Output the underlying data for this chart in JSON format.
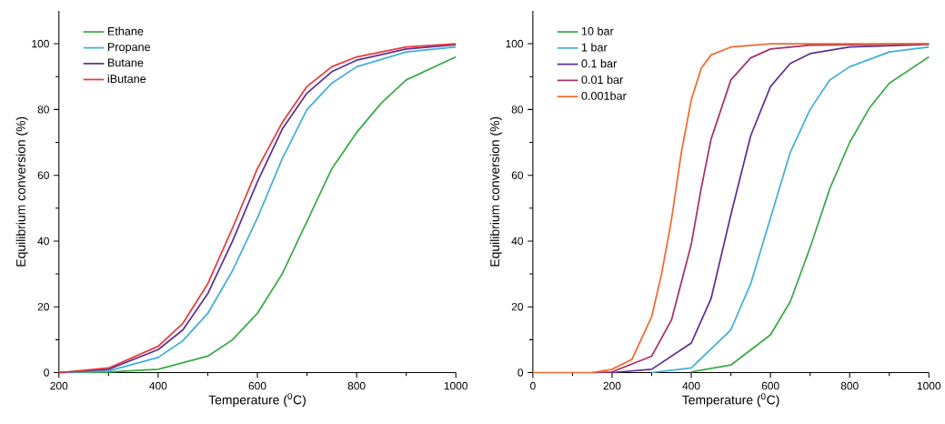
{
  "chart_data": [
    {
      "type": "line",
      "xlabel": "Temperature ($^{0}$C)",
      "ylabel": "Equilibrium conversion (%)",
      "xlim": [
        200,
        1000
      ],
      "ylim": [
        0,
        110
      ],
      "xticks": [
        200,
        400,
        600,
        800,
        1000
      ],
      "yticks": [
        0,
        20,
        40,
        60,
        80,
        100
      ],
      "legend": "top left",
      "series": [
        {
          "name": "Ethane",
          "color": "#3aaa47",
          "x": [
            200,
            300,
            400,
            500,
            550,
            600,
            650,
            700,
            750,
            800,
            850,
            900,
            1000
          ],
          "values": [
            0,
            0.2,
            1,
            5,
            10,
            18,
            30,
            46,
            62,
            73,
            82,
            89,
            96
          ]
        },
        {
          "name": "Propane",
          "color": "#42afd6",
          "x": [
            200,
            300,
            400,
            450,
            500,
            550,
            600,
            650,
            700,
            750,
            800,
            900,
            1000
          ],
          "values": [
            0,
            0.5,
            4.6,
            9.7,
            18,
            31,
            47,
            65,
            80,
            88,
            93,
            97.5,
            99
          ]
        },
        {
          "name": "Butane",
          "color": "#5e3091",
          "x": [
            200,
            300,
            400,
            450,
            500,
            550,
            600,
            650,
            700,
            750,
            800,
            900,
            1000
          ],
          "values": [
            0,
            1,
            7,
            13,
            24,
            40,
            58,
            74,
            85,
            91.5,
            95,
            98.4,
            99.7
          ]
        },
        {
          "name": "iButane",
          "color": "#e53a3a",
          "x": [
            200,
            300,
            400,
            450,
            500,
            550,
            600,
            650,
            700,
            750,
            800,
            900,
            1000
          ],
          "values": [
            0,
            1.4,
            8,
            15,
            27,
            44,
            62,
            76,
            87,
            93,
            96,
            99,
            100
          ]
        }
      ]
    },
    {
      "type": "line",
      "xlabel": "Temperature ($^{0}$C)",
      "ylabel": "Equilibrium conversion (%)",
      "xlim": [
        0,
        1000
      ],
      "ylim": [
        0,
        110
      ],
      "xticks": [
        0,
        200,
        400,
        600,
        800,
        1000
      ],
      "yticks": [
        0,
        20,
        40,
        60,
        80,
        100
      ],
      "legend": "top left",
      "series": [
        {
          "name": "10 bar",
          "color": "#3aaa47",
          "x": [
            400,
            500,
            600,
            650,
            700,
            750,
            800,
            850,
            900,
            1000
          ],
          "values": [
            0.2,
            2.3,
            11.5,
            21.6,
            38,
            56,
            70,
            80.5,
            88,
            96
          ]
        },
        {
          "name": "1 bar",
          "color": "#42afd6",
          "x": [
            300,
            400,
            500,
            550,
            600,
            650,
            700,
            750,
            800,
            900,
            1000
          ],
          "values": [
            0,
            1.4,
            13,
            27,
            47,
            67,
            80,
            89,
            93,
            97.5,
            99
          ]
        },
        {
          "name": "0.1 bar",
          "color": "#5e3091",
          "x": [
            200,
            300,
            400,
            450,
            500,
            550,
            600,
            650,
            700,
            800,
            1000
          ],
          "values": [
            0,
            1,
            9,
            22.5,
            48,
            72,
            87,
            94,
            97,
            99,
            99.8
          ]
        },
        {
          "name": "0.01 bar",
          "color": "#a4306e",
          "x": [
            150,
            200,
            300,
            350,
            400,
            425,
            450,
            500,
            550,
            600,
            700,
            1000
          ],
          "values": [
            0,
            0.2,
            5,
            16,
            39,
            56,
            71,
            89,
            95.7,
            98.4,
            99.6,
            100
          ]
        },
        {
          "name": "0.001bar",
          "color": "#f26a2e",
          "x": [
            0,
            150,
            200,
            250,
            300,
            325,
            350,
            375,
            400,
            425,
            450,
            500,
            600,
            1000
          ],
          "values": [
            0,
            0,
            1,
            4,
            17,
            30,
            46.5,
            67,
            83,
            92.5,
            96.6,
            99,
            100,
            100
          ]
        }
      ]
    }
  ]
}
